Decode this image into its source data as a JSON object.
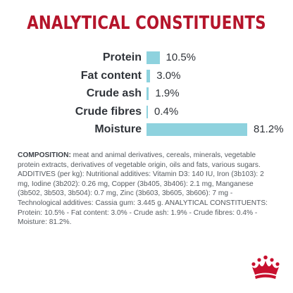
{
  "title": "ANALYTICAL CONSTITUENTS",
  "colors": {
    "title": "#b5152b",
    "label": "#30343a",
    "bar": "#8ed2de",
    "text": "#555a60",
    "logo": "#c8102e"
  },
  "constituents": [
    {
      "label": "Protein",
      "value": "10.5%",
      "percent": 10.5
    },
    {
      "label": "Fat content",
      "value": "3.0%",
      "percent": 3.0
    },
    {
      "label": "Crude ash",
      "value": "1.9%",
      "percent": 1.9
    },
    {
      "label": "Crude fibres",
      "value": "0.4%",
      "percent": 0.4
    },
    {
      "label": "Moisture",
      "value": "81.2%",
      "percent": 81.2
    }
  ],
  "composition": {
    "heading": "COMPOSITION:",
    "text": " meat and animal derivatives, cereals, minerals, vegetable protein extracts, derivatives of vegetable origin, oils and fats, various sugars. ADDITIVES (per kg): Nutritional additives: Vitamin D3: 140 IU, Iron (3b103): 2 mg, Iodine (3b202): 0.26 mg, Copper (3b405, 3b406): 2.1 mg, Manganese (3b502, 3b503, 3b504): 0.7 mg, Zinc (3b603, 3b605, 3b606): 7 mg - Technological additives: Cassia gum: 3.445 g. ANALYTICAL CONSTITUENTS: Protein: 10.5% - Fat content: 3.0% - Crude ash: 1.9% - Crude fibres: 0.4% - Moisture: 81.2%."
  },
  "logo_icon": "crown-icon"
}
